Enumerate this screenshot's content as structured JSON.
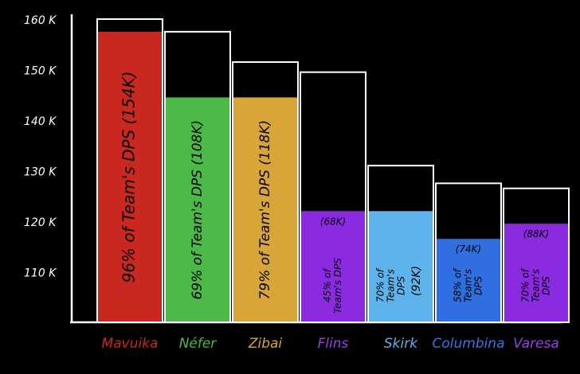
{
  "chart_data": {
    "type": "bar",
    "ylim": [
      100,
      160
    ],
    "y_ticks": [
      {
        "value": 160,
        "label": "160 K"
      },
      {
        "value": 150,
        "label": "150 K"
      },
      {
        "value": 140,
        "label": "140 K"
      },
      {
        "value": 130,
        "label": "130 K"
      },
      {
        "value": 120,
        "label": "120 K"
      },
      {
        "value": 110,
        "label": "110 K"
      }
    ],
    "grid": false,
    "bars": [
      {
        "name": "Mavuika",
        "total": 160,
        "value": 157.5,
        "fill_color": "#c8281f",
        "label_color": "#c8281f",
        "text_lines": [
          "96% of Team's DPS (154K)"
        ]
      },
      {
        "name": "Néfer",
        "total": 157.5,
        "value": 144.5,
        "fill_color": "#4cb847",
        "label_color": "#4cb847",
        "text_lines": [
          "69% of Team's DPS (108K)"
        ]
      },
      {
        "name": "Zibai",
        "total": 151.5,
        "value": 144.5,
        "fill_color": "#d8a638",
        "label_color": "#d8a638",
        "text_lines": [
          "79% of Team's DPS (118K)"
        ]
      },
      {
        "name": "Flins",
        "total": 149.5,
        "value": 122,
        "fill_color": "#8a2be2",
        "label_color": "#9a3fe8",
        "text_lines": [
          "45% of",
          "Team's DPS"
        ],
        "top_text": "(68K)"
      },
      {
        "name": "Skirk",
        "total": 131,
        "value": 122,
        "fill_color": "#5db3ea",
        "label_color": "#5db3ea",
        "text_lines": [
          "70% of",
          "Team's",
          "DPS"
        ],
        "side_text": "(92K)"
      },
      {
        "name": "Columbina",
        "total": 127.5,
        "value": 116.5,
        "fill_color": "#2f6fe0",
        "label_color": "#3a74e4",
        "text_lines": [
          "58% of",
          "Team's",
          "DPS"
        ],
        "top_text": "(74K)"
      },
      {
        "name": "Varesa",
        "total": 126.5,
        "value": 119.5,
        "fill_color": "#8a2be2",
        "label_color": "#9a3fe8",
        "text_lines": [
          "70% of",
          "Team's",
          "DPS"
        ],
        "top_text": "(88K)"
      }
    ]
  }
}
